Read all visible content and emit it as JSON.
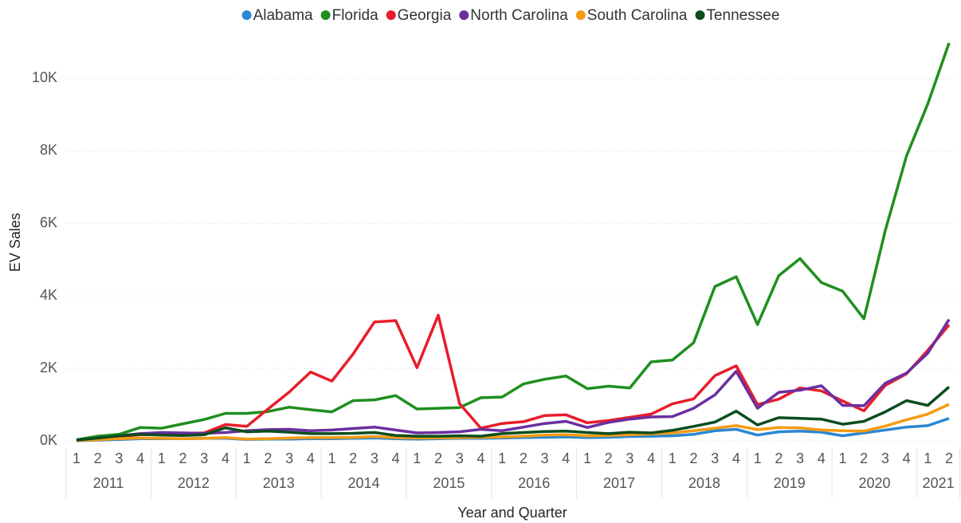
{
  "chart_data": {
    "type": "line",
    "x_label": "Year and Quarter",
    "y_label": "EV Sales",
    "categories": [
      "1",
      "2",
      "3",
      "4",
      "1",
      "2",
      "3",
      "4",
      "1",
      "2",
      "3",
      "4",
      "1",
      "2",
      "3",
      "4",
      "1",
      "2",
      "3",
      "4",
      "1",
      "2",
      "3",
      "4",
      "1",
      "2",
      "3",
      "4",
      "1",
      "2",
      "3",
      "4",
      "1",
      "2",
      "3",
      "4",
      "1",
      "2",
      "3",
      "4",
      "1",
      "2"
    ],
    "years": [
      "2011",
      "2012",
      "2013",
      "2014",
      "2015",
      "2016",
      "2017",
      "2018",
      "2019",
      "2020",
      "2021"
    ],
    "ylim": [
      0,
      11000
    ],
    "yticks": [
      {
        "value": 0,
        "label": "0K"
      },
      {
        "value": 2000,
        "label": "2K"
      },
      {
        "value": 4000,
        "label": "4K"
      },
      {
        "value": 6000,
        "label": "6K"
      },
      {
        "value": 8000,
        "label": "8K"
      },
      {
        "value": 10000,
        "label": "10K"
      }
    ],
    "grid": true,
    "legend": "top",
    "series": [
      {
        "name": "Alabama",
        "color": "#2b87d1",
        "values": [
          5,
          20,
          40,
          60,
          60,
          60,
          70,
          70,
          40,
          50,
          50,
          60,
          60,
          70,
          80,
          60,
          50,
          60,
          70,
          70,
          80,
          90,
          100,
          110,
          90,
          100,
          120,
          130,
          140,
          180,
          280,
          320,
          160,
          250,
          270,
          240,
          140,
          220,
          300,
          380,
          420,
          620
        ]
      },
      {
        "name": "Florida",
        "color": "#1f8f1f",
        "values": [
          30,
          130,
          180,
          370,
          350,
          470,
          590,
          760,
          760,
          810,
          930,
          860,
          800,
          1110,
          1130,
          1250,
          880,
          900,
          920,
          1190,
          1210,
          1570,
          1700,
          1790,
          1440,
          1510,
          1460,
          2180,
          2230,
          2710,
          4260,
          4530,
          3210,
          4560,
          5030,
          4370,
          4130,
          3370,
          5800,
          7860,
          9300,
          10980
        ]
      },
      {
        "name": "Georgia",
        "color": "#e81d2b",
        "values": [
          20,
          70,
          120,
          170,
          180,
          200,
          220,
          450,
          400,
          880,
          1350,
          1900,
          1650,
          2400,
          3280,
          3320,
          2020,
          3470,
          1030,
          350,
          480,
          530,
          700,
          720,
          500,
          560,
          650,
          740,
          1020,
          1160,
          1800,
          2070,
          1000,
          1150,
          1460,
          1380,
          1100,
          830,
          1530,
          1850,
          2500,
          3200
        ]
      },
      {
        "name": "North Carolina",
        "color": "#6b2fa0",
        "values": [
          20,
          80,
          140,
          200,
          230,
          220,
          210,
          230,
          280,
          310,
          320,
          280,
          300,
          340,
          380,
          300,
          220,
          230,
          250,
          320,
          280,
          380,
          480,
          540,
          370,
          510,
          600,
          660,
          670,
          900,
          1270,
          1920,
          900,
          1340,
          1400,
          1520,
          980,
          970,
          1590,
          1870,
          2420,
          3350
        ]
      },
      {
        "name": "South Carolina",
        "color": "#f59b12",
        "values": [
          10,
          30,
          60,
          80,
          70,
          60,
          70,
          90,
          50,
          60,
          80,
          90,
          90,
          100,
          120,
          90,
          80,
          80,
          90,
          100,
          110,
          130,
          160,
          170,
          140,
          150,
          170,
          190,
          220,
          280,
          350,
          420,
          310,
          370,
          360,
          300,
          280,
          270,
          410,
          580,
          740,
          1010
        ]
      },
      {
        "name": "Tennessee",
        "color": "#0b4d1f",
        "values": [
          20,
          80,
          140,
          180,
          160,
          150,
          170,
          360,
          250,
          270,
          240,
          200,
          200,
          210,
          230,
          150,
          130,
          130,
          140,
          130,
          200,
          230,
          260,
          270,
          230,
          200,
          240,
          220,
          290,
          400,
          520,
          820,
          440,
          640,
          620,
          600,
          460,
          540,
          800,
          1110,
          980,
          1490
        ]
      }
    ]
  }
}
